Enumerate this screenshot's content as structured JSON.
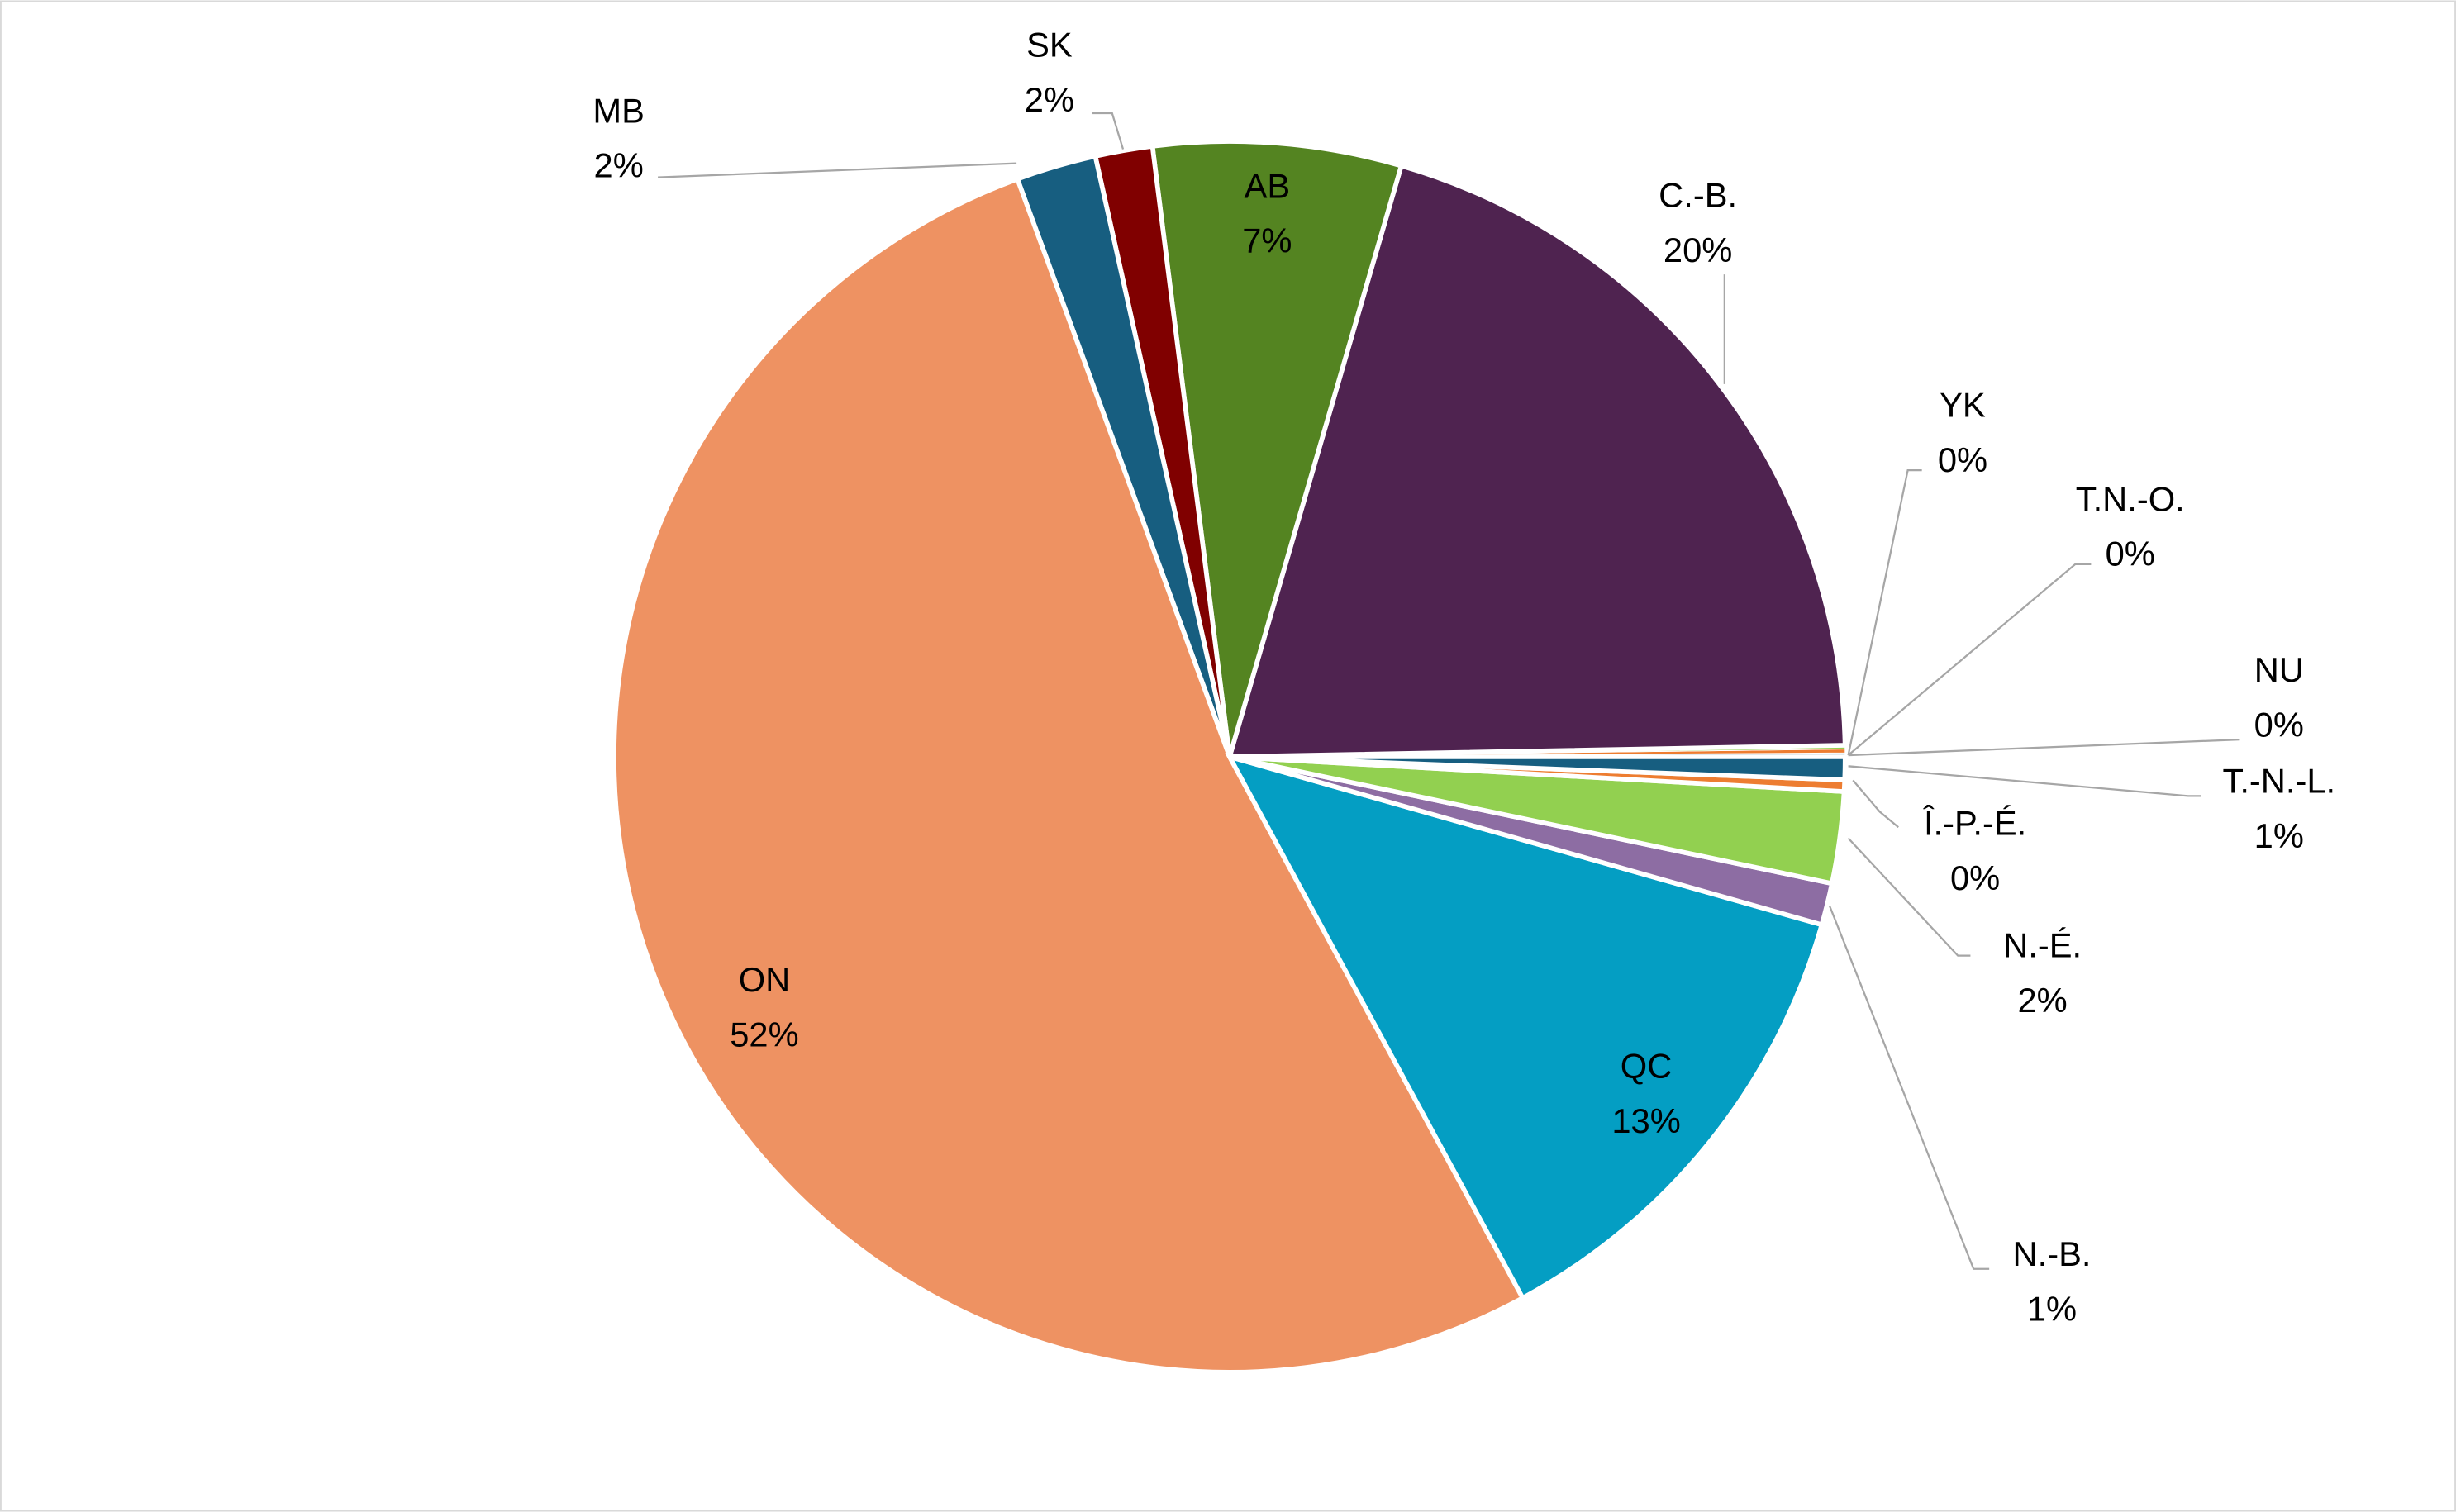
{
  "chart_data": {
    "type": "pie",
    "title": "",
    "start_angle_note": "counterclockwise from 3 o'clock",
    "slices": [
      {
        "label": "NU",
        "pct_label": "0%",
        "value": 0.1,
        "color": "#175e80"
      },
      {
        "label": "T.N.-O.",
        "pct_label": "0%",
        "value": 0.1,
        "color": "#ed7d31"
      },
      {
        "label": "YK",
        "pct_label": "0%",
        "value": 0.1,
        "color": "#92d050"
      },
      {
        "label": "C.-B.",
        "pct_label": "20%",
        "value": 20.2,
        "color": "#4f2350"
      },
      {
        "label": "AB",
        "pct_label": "7%",
        "value": 6.5,
        "color": "#548421"
      },
      {
        "label": "SK",
        "pct_label": "2%",
        "value": 1.5,
        "color": "#800000"
      },
      {
        "label": "MB",
        "pct_label": "2%",
        "value": 2.1,
        "color": "#175e80"
      },
      {
        "label": "ON",
        "pct_label": "52%",
        "value": 52.3,
        "color": "#ee9262"
      },
      {
        "label": "QC",
        "pct_label": "13%",
        "value": 12.7,
        "color": "#049ec3"
      },
      {
        "label": "N.-B.",
        "pct_label": "1%",
        "value": 1.1,
        "color": "#8d6da3"
      },
      {
        "label": "N.-É.",
        "pct_label": "2%",
        "value": 2.4,
        "color": "#92d050"
      },
      {
        "label": "Î.-P.-É.",
        "pct_label": "0%",
        "value": 0.3,
        "color": "#ed7d31"
      },
      {
        "label": "T.-N.-L.",
        "pct_label": "1%",
        "value": 0.6,
        "color": "#175e80"
      }
    ],
    "legend": "none"
  }
}
